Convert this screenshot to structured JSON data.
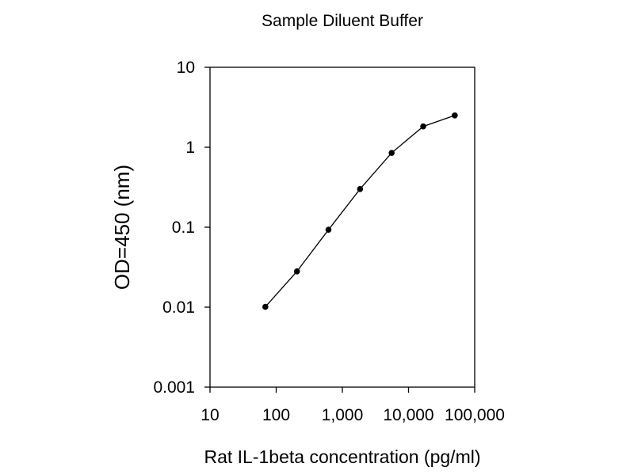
{
  "chart_data": {
    "type": "line",
    "title": "Sample Diluent Buffer",
    "xlabel": "Rat IL-1beta concentration (pg/ml)",
    "ylabel": "OD=450 (nm)",
    "x_scale": "log",
    "y_scale": "log",
    "xlim": [
      10,
      100000
    ],
    "ylim": [
      0.001,
      10
    ],
    "x_ticks": [
      10,
      100,
      1000,
      10000,
      100000
    ],
    "x_tick_labels": [
      "10",
      "100",
      "1,000",
      "10,000",
      "100,000"
    ],
    "y_ticks": [
      0.001,
      0.01,
      0.1,
      1,
      10
    ],
    "y_tick_labels": [
      "0.001",
      "0.01",
      "0.1",
      "1",
      "10"
    ],
    "grid": false,
    "legend": "none",
    "series": [
      {
        "x": [
          68.6,
          206,
          617,
          1852,
          5556,
          16667,
          50000
        ],
        "y": [
          0.0101,
          0.028,
          0.093,
          0.3,
          0.85,
          1.82,
          2.5
        ]
      }
    ],
    "colors": {
      "line": "#000000",
      "marker": "#000000",
      "axis": "#000000"
    }
  }
}
